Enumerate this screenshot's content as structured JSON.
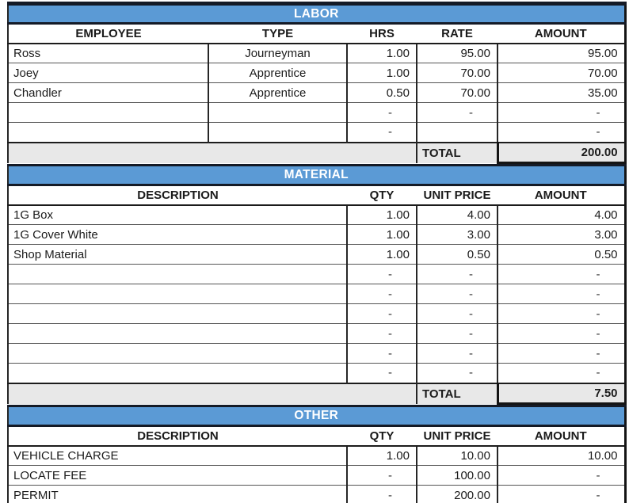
{
  "colors": {
    "banner_blue": "#5B9AD5",
    "banner_text": "#FFFFFF",
    "banner_border": "#141A26",
    "total_row_bg": "#E8E8E8",
    "grid_dark": "#262626",
    "grid_light": "#555555",
    "thick_border": "#141414",
    "text": "#1B1B1B"
  },
  "sections": [
    {
      "id": "labor",
      "title": "LABOR",
      "columns": [
        "EMPLOYEE",
        "TYPE",
        "HRS",
        "RATE",
        "AMOUNT"
      ],
      "rows": [
        [
          "Ross",
          "Journeyman",
          "1.00",
          "95.00",
          "95.00"
        ],
        [
          "Joey",
          "Apprentice",
          "1.00",
          "70.00",
          "70.00"
        ],
        [
          "Chandler",
          "Apprentice",
          "0.50",
          "70.00",
          "35.00"
        ],
        [
          "",
          "",
          "-",
          "-",
          "-"
        ],
        [
          "",
          "",
          "-",
          "",
          "-"
        ]
      ],
      "total": {
        "label": "TOTAL",
        "value": "200.00"
      }
    },
    {
      "id": "material",
      "title": "MATERIAL",
      "columns": [
        "DESCRIPTION",
        "QTY",
        "UNIT PRICE",
        "AMOUNT"
      ],
      "rows": [
        [
          "1G Box",
          "1.00",
          "4.00",
          "4.00"
        ],
        [
          "1G Cover White",
          "1.00",
          "3.00",
          "3.00"
        ],
        [
          "Shop Material",
          "1.00",
          "0.50",
          "0.50"
        ],
        [
          "",
          "-",
          "-",
          "-"
        ],
        [
          "",
          "-",
          "-",
          "-"
        ],
        [
          "",
          "-",
          "-",
          "-"
        ],
        [
          "",
          "-",
          "-",
          "-"
        ],
        [
          "",
          "-",
          "-",
          "-"
        ],
        [
          "",
          "-",
          "-",
          "-"
        ]
      ],
      "total": {
        "label": "TOTAL",
        "value": "7.50"
      }
    },
    {
      "id": "other",
      "title": "OTHER",
      "columns": [
        "DESCRIPTION",
        "QTY",
        "UNIT PRICE",
        "AMOUNT"
      ],
      "rows": [
        [
          "VEHICLE CHARGE",
          "1.00",
          "10.00",
          "10.00"
        ],
        [
          "LOCATE FEE",
          "-",
          "100.00",
          "-"
        ],
        [
          "PERMIT",
          "-",
          "200.00",
          "-"
        ]
      ],
      "total": null
    }
  ]
}
